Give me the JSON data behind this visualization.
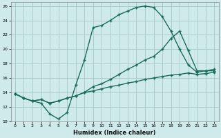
{
  "xlabel": "Humidex (Indice chaleur)",
  "bg_color": "#ceeaea",
  "grid_color": "#aacccc",
  "line_color": "#1a6b5a",
  "xlim": [
    -0.5,
    23.5
  ],
  "ylim": [
    10,
    26.5
  ],
  "xticks": [
    0,
    1,
    2,
    3,
    4,
    5,
    6,
    7,
    8,
    9,
    10,
    11,
    12,
    13,
    14,
    15,
    16,
    17,
    18,
    19,
    20,
    21,
    22,
    23
  ],
  "yticks": [
    10,
    12,
    14,
    16,
    18,
    20,
    22,
    24,
    26
  ],
  "line1_x": [
    0,
    1,
    2,
    3,
    4,
    5,
    6,
    7,
    8,
    9,
    10,
    11,
    12,
    13,
    14,
    15,
    16,
    17,
    18,
    19,
    20,
    21,
    22,
    23
  ],
  "line1_y": [
    13.8,
    13.2,
    12.8,
    12.5,
    11.0,
    10.3,
    11.2,
    15.0,
    18.5,
    23.0,
    23.3,
    24.0,
    24.8,
    25.3,
    25.8,
    26.0,
    25.8,
    24.5,
    22.5,
    20.0,
    17.8,
    16.8,
    17.0,
    17.0
  ],
  "line2_x": [
    0,
    1,
    2,
    3,
    4,
    5,
    6,
    7,
    8,
    9,
    10,
    11,
    12,
    13,
    14,
    15,
    16,
    17,
    18,
    19,
    20,
    21,
    22,
    23
  ],
  "line2_y": [
    13.8,
    13.2,
    12.8,
    13.0,
    12.5,
    12.8,
    13.2,
    13.5,
    14.0,
    14.8,
    15.2,
    15.8,
    16.5,
    17.2,
    17.8,
    18.5,
    19.0,
    20.0,
    21.5,
    22.5,
    19.8,
    17.0,
    17.0,
    17.2
  ],
  "line3_x": [
    0,
    1,
    2,
    3,
    4,
    5,
    6,
    7,
    8,
    9,
    10,
    11,
    12,
    13,
    14,
    15,
    16,
    17,
    18,
    19,
    20,
    21,
    22,
    23
  ],
  "line3_y": [
    13.8,
    13.2,
    12.8,
    13.0,
    12.5,
    12.8,
    13.2,
    13.5,
    14.0,
    14.2,
    14.5,
    14.8,
    15.0,
    15.3,
    15.5,
    15.8,
    16.0,
    16.2,
    16.4,
    16.5,
    16.7,
    16.5,
    16.6,
    16.8
  ]
}
